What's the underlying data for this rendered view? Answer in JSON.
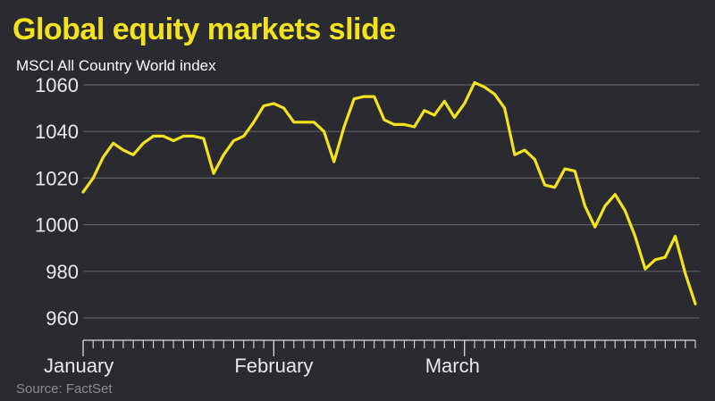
{
  "title": "Global equity markets slide",
  "subtitle": "MSCI All Country World index",
  "source": "Source: FactSet",
  "colors": {
    "background": "#2a2b31",
    "line": "#f2e31d",
    "grid": "#5d5e63",
    "text": "#e9e9ea",
    "source_text": "#8a8c92"
  },
  "chart_data": {
    "type": "line",
    "title": "Global equity markets slide",
    "subtitle": "MSCI All Country World index",
    "xlabel": "",
    "ylabel": "",
    "ylim": [
      955,
      1065
    ],
    "yticks": [
      960,
      980,
      1000,
      1020,
      1040,
      1060
    ],
    "grid": "horizontal",
    "legend": "none",
    "month_labels": [
      {
        "label": "January",
        "index": 0
      },
      {
        "label": "February",
        "index": 19
      },
      {
        "label": "March",
        "index": 38
      }
    ],
    "series": [
      {
        "values": [
          1014,
          1020,
          1029,
          1035,
          1032,
          1030,
          1035,
          1038,
          1038,
          1036,
          1038,
          1038,
          1037,
          1022,
          1030,
          1036,
          1038,
          1044,
          1051,
          1052,
          1050,
          1044,
          1044,
          1044,
          1040,
          1027,
          1042,
          1054,
          1055,
          1055,
          1045,
          1043,
          1043,
          1042,
          1049,
          1047,
          1053,
          1046,
          1052,
          1061,
          1059,
          1056,
          1050,
          1030,
          1032,
          1028,
          1017,
          1016,
          1024,
          1023,
          1008,
          999,
          1008,
          1013,
          1006,
          995,
          981,
          985,
          986,
          995,
          979,
          966
        ]
      }
    ]
  }
}
